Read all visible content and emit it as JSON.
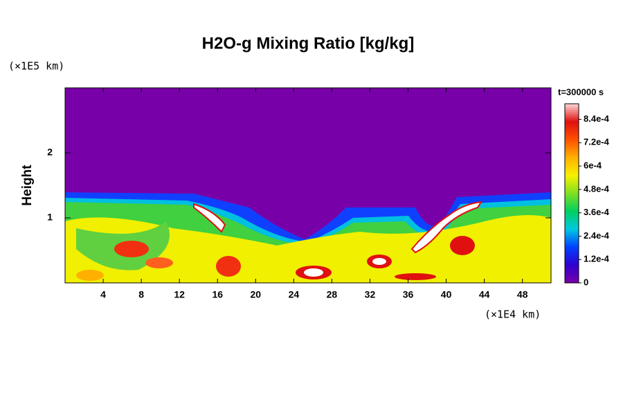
{
  "chart_data": {
    "type": "heatmap",
    "title": "H2O-g Mixing Ratio [kg/kg]",
    "y_label": "Height",
    "y_unit": "(×1E5 km)",
    "x_unit": "(×1E4 km)",
    "time_label": "t=300000 s",
    "xlim": [
      0,
      51
    ],
    "xticks": [
      4,
      8,
      12,
      16,
      20,
      24,
      28,
      32,
      36,
      40,
      44,
      48
    ],
    "ylim": [
      0,
      3
    ],
    "yticks": [
      1,
      2
    ],
    "clim": [
      0,
      0.00092
    ],
    "cticks": [
      0,
      {
        "value": 0.00012,
        "label": "1.2e-4"
      },
      {
        "value": 0.00024,
        "label": "2.4e-4"
      },
      {
        "value": 0.00036,
        "label": "3.6e-4"
      },
      {
        "value": 0.00048,
        "label": "4.8e-4"
      },
      {
        "value": 0.0006,
        "label": "6e-4"
      },
      {
        "value": 0.00072,
        "label": "7.2e-4"
      },
      {
        "value": 0.00084,
        "label": "8.4e-4"
      }
    ],
    "colormap": [
      "#7800a8",
      "#3000d0",
      "#0040ff",
      "#00c8e0",
      "#00d060",
      "#80e020",
      "#f8f000",
      "#ffb000",
      "#ff5000",
      "#e01010",
      "#ffd8d8"
    ]
  }
}
